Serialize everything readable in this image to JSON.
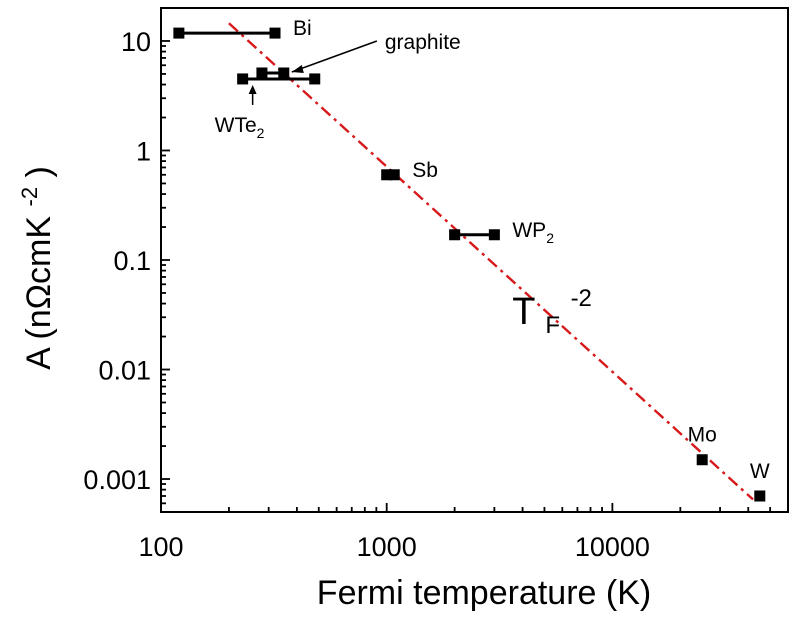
{
  "chart_data": {
    "type": "scatter",
    "xlabel": "Fermi temperature (K)",
    "ylabel": {
      "prefix": "A (nΩcmK",
      "sup": "-2",
      "suffix": ")"
    },
    "xscale": "log",
    "yscale": "log",
    "xlim": [
      100,
      60000
    ],
    "ylim": [
      0.0005,
      20
    ],
    "xticks": [
      {
        "value": 100,
        "label": "100"
      },
      {
        "value": 1000,
        "label": "1000"
      },
      {
        "value": 10000,
        "label": "10000"
      }
    ],
    "yticks": [
      {
        "value": 10,
        "label": "10"
      },
      {
        "value": 1,
        "label": "1"
      },
      {
        "value": 0.1,
        "label": "0.1"
      },
      {
        "value": 0.01,
        "label": "0.01"
      },
      {
        "value": 0.001,
        "label": "0.001"
      }
    ],
    "grid": false,
    "marker_color": "#000000",
    "points": [
      {
        "name": "Bi",
        "label": "Bi",
        "sub": "",
        "x": 120,
        "x2": 320,
        "y": 11.8,
        "label_pos": "right"
      },
      {
        "name": "graphite",
        "label": "graphite",
        "sub": "",
        "x": 280,
        "x2": 350,
        "y": 5.1,
        "label_pos": "arrow-upper-right"
      },
      {
        "name": "WTe2",
        "label": "WTe",
        "sub": "2",
        "x": 230,
        "x2": 480,
        "y": 4.5,
        "label_pos": "arrow-below"
      },
      {
        "name": "Sb",
        "label": "Sb",
        "sub": "",
        "x": 1000,
        "x2": 1080,
        "y": 0.6,
        "label_pos": "right"
      },
      {
        "name": "WP2",
        "label": "WP",
        "sub": "2",
        "x": 2000,
        "x2": 3000,
        "y": 0.17,
        "label_pos": "right"
      },
      {
        "name": "Mo",
        "label": "Mo",
        "sub": "",
        "x": 25000,
        "y": 0.0015,
        "label_pos": "above"
      },
      {
        "name": "W",
        "label": "W",
        "sub": "",
        "x": 45000,
        "y": 0.0007,
        "label_pos": "above"
      }
    ],
    "fit_line": {
      "label": "T",
      "label_sub": "F",
      "label_sup": "-2",
      "color": "#d7191c",
      "style": "dash-dot",
      "exponent": -2,
      "x": [
        200,
        42000
      ],
      "y": [
        14.5,
        0.00065
      ]
    }
  }
}
